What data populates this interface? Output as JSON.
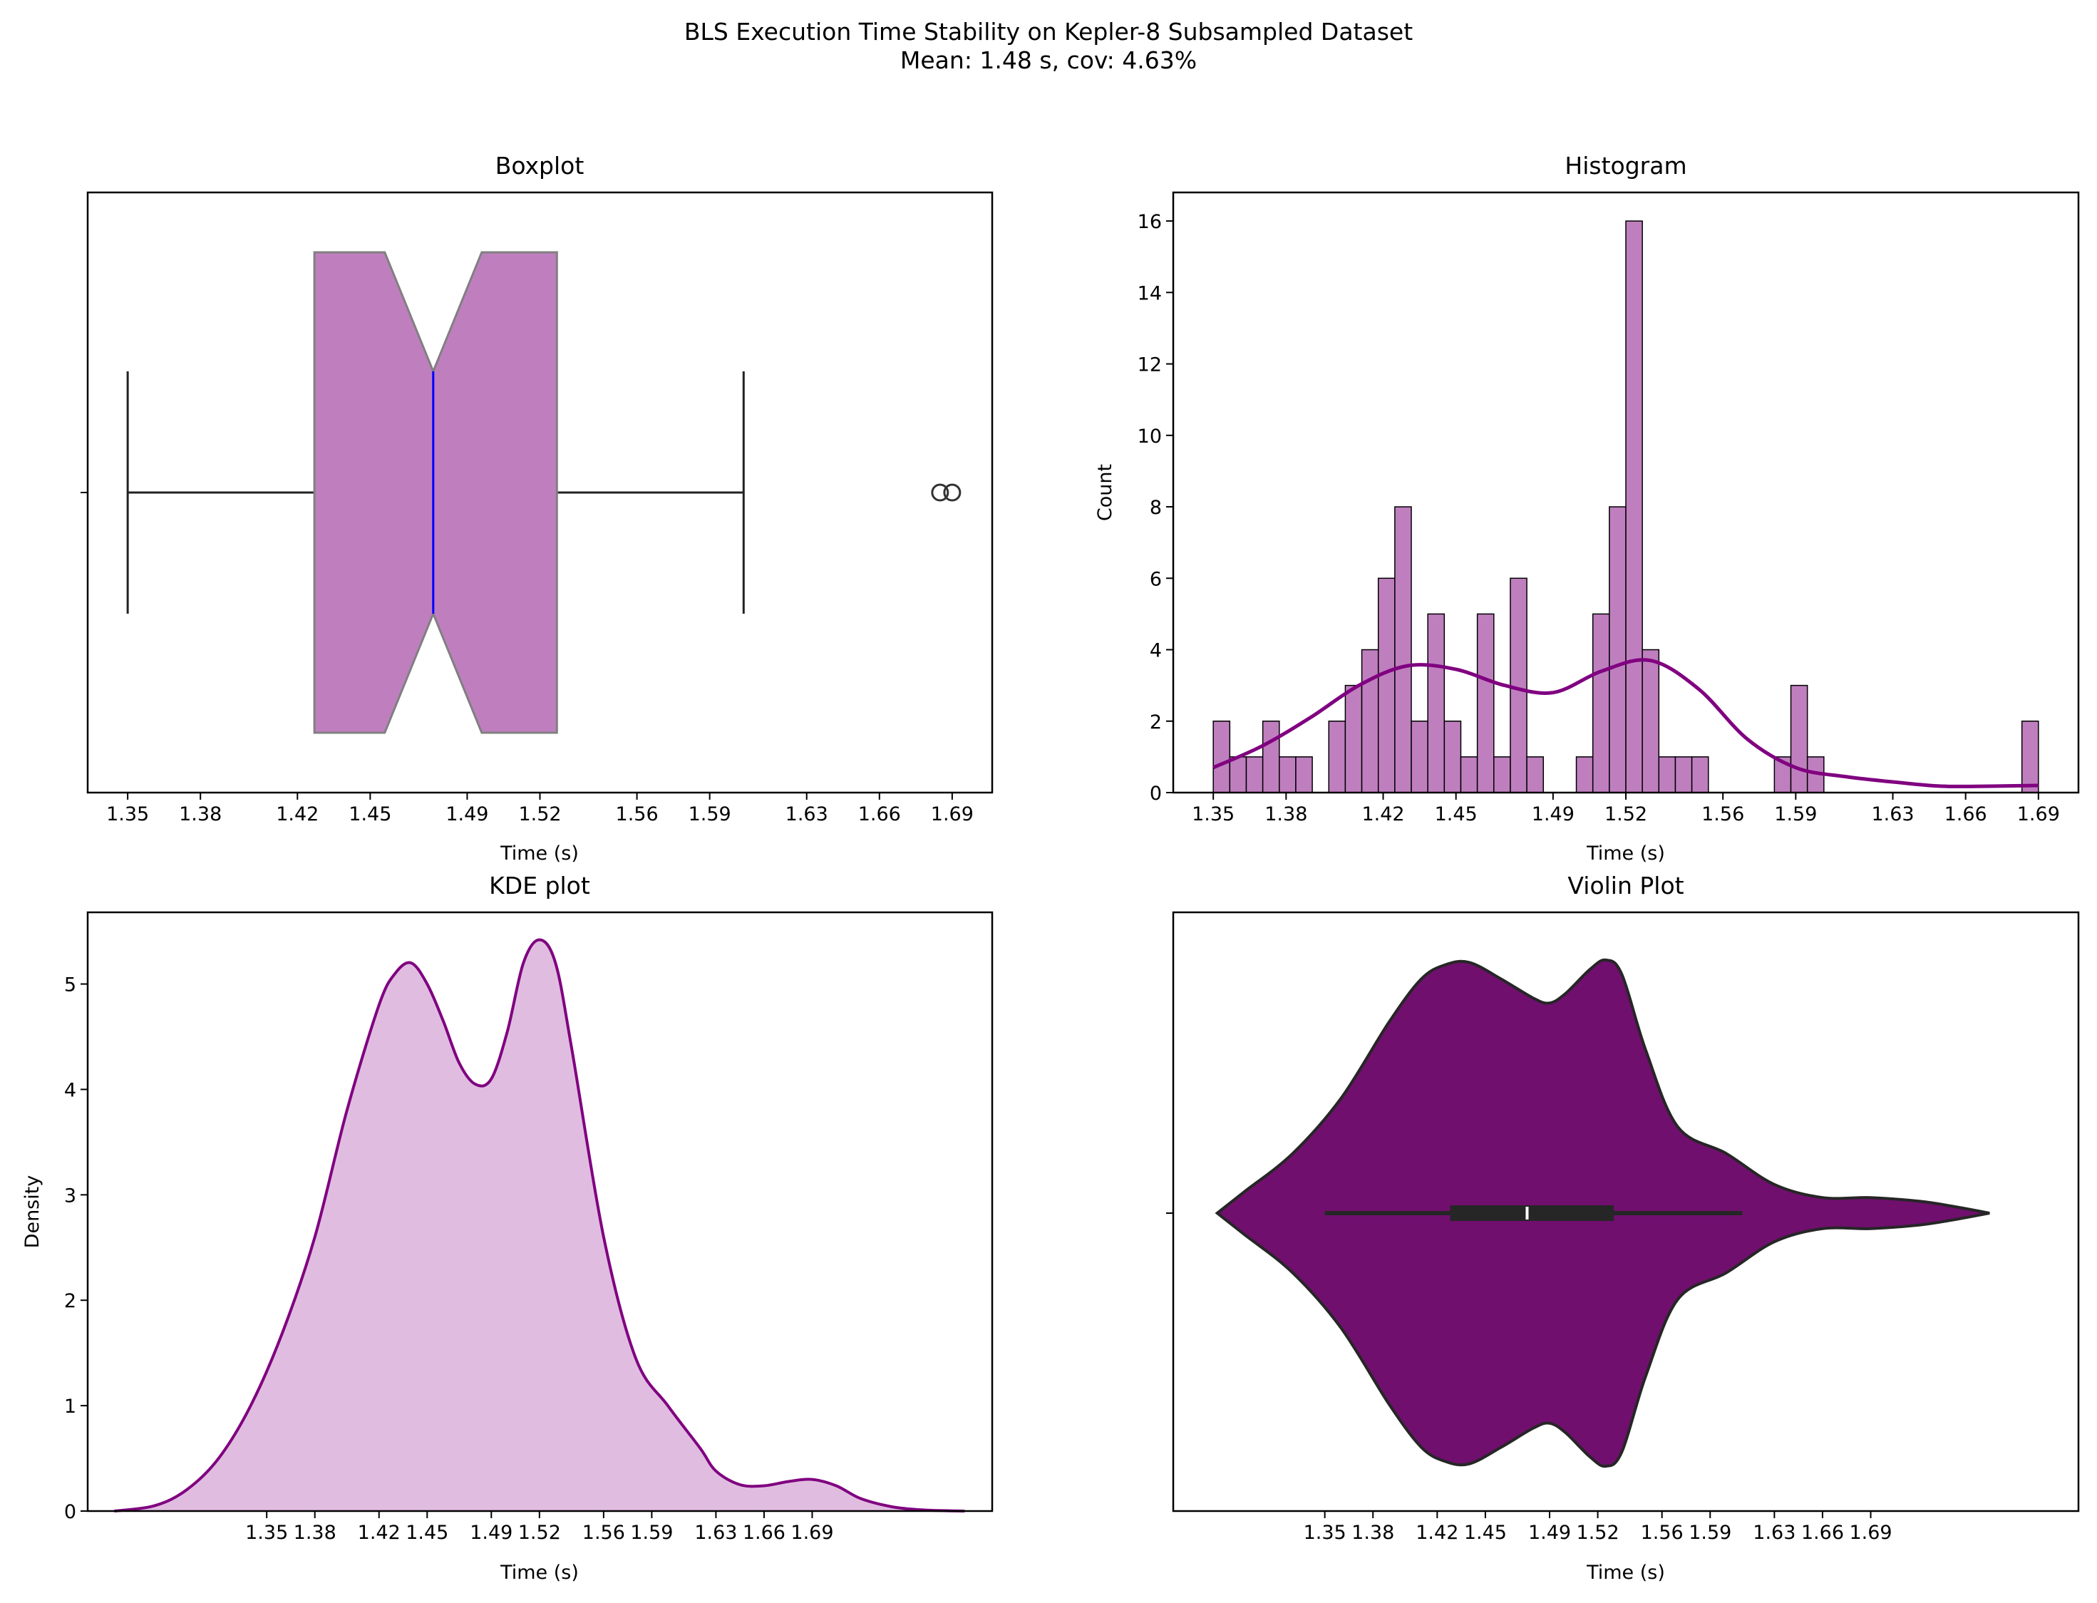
{
  "figure": {
    "title_line1": "BLS Execution Time Stability on Kepler-8 Subsampled Dataset",
    "title_line2": "Mean: 1.48 s, cov: 4.63%"
  },
  "colors": {
    "box_fill": "#bf7fbf",
    "box_edge": "#808080",
    "median_line": "#0000ff",
    "hist_fill": "#bf7fbf",
    "kde_line": "#800080",
    "kde_fill": "#e0bde0",
    "violin_fill": "#700f6e",
    "violin_edge": "#262626"
  },
  "chart_data": [
    {
      "type": "boxplot",
      "title": "Boxplot",
      "xlabel": "Time (s)",
      "ylabel": "",
      "notched": true,
      "xticks": [
        "1.35",
        "1.38",
        "1.42",
        "1.45",
        "1.49",
        "1.52",
        "1.56",
        "1.59",
        "1.63",
        "1.66",
        "1.69"
      ],
      "xlim": [
        1.3335,
        1.7065
      ],
      "whisker_low": 1.35,
      "q1": 1.427,
      "median": 1.476,
      "q3": 1.527,
      "whisker_high": 1.604,
      "notch_low": 1.456,
      "notch_high": 1.496,
      "outliers": [
        1.685,
        1.69
      ]
    },
    {
      "type": "bar",
      "title": "Histogram",
      "xlabel": "Time (s)",
      "ylabel": "Count",
      "xticks": [
        "1.35",
        "1.38",
        "1.42",
        "1.45",
        "1.49",
        "1.52",
        "1.56",
        "1.59",
        "1.63",
        "1.66",
        "1.69"
      ],
      "yticks": [
        "0",
        "2",
        "4",
        "6",
        "8",
        "10",
        "12",
        "14",
        "16"
      ],
      "xlim": [
        1.3335,
        1.7065
      ],
      "ylim": [
        0,
        16.8
      ],
      "bin_start": 1.35,
      "bin_width": 0.0068,
      "counts": [
        2,
        1,
        1,
        2,
        1,
        1,
        0,
        2,
        3,
        4,
        6,
        8,
        2,
        5,
        2,
        1,
        5,
        1,
        6,
        1,
        0,
        0,
        1,
        5,
        8,
        16,
        4,
        1,
        1,
        1,
        0,
        0,
        0,
        0,
        1,
        3,
        1,
        0,
        0,
        0,
        0,
        0,
        0,
        0,
        0,
        0,
        0,
        0,
        0,
        2
      ],
      "kde_x": [
        1.35,
        1.37,
        1.39,
        1.41,
        1.43,
        1.45,
        1.47,
        1.49,
        1.51,
        1.53,
        1.55,
        1.57,
        1.59,
        1.61,
        1.63,
        1.65,
        1.67,
        1.69
      ],
      "kde_y": [
        0.7,
        1.3,
        2.1,
        3.0,
        3.55,
        3.45,
        3.0,
        2.8,
        3.4,
        3.7,
        2.9,
        1.5,
        0.7,
        0.45,
        0.3,
        0.18,
        0.18,
        0.2
      ]
    },
    {
      "type": "area",
      "title": "KDE plot",
      "xlabel": "Time (s)",
      "ylabel": "Density",
      "xticks": [
        "1.35",
        "1.38",
        "1.42",
        "1.45",
        "1.49",
        "1.52",
        "1.56",
        "1.59",
        "1.63",
        "1.66",
        "1.69"
      ],
      "yticks": [
        "0",
        "1",
        "2",
        "3",
        "4",
        "5"
      ],
      "xlim": [
        1.2384,
        1.8022
      ],
      "ylim": [
        0,
        5.68
      ],
      "x": [
        1.255,
        1.28,
        1.3,
        1.32,
        1.34,
        1.36,
        1.38,
        1.4,
        1.42,
        1.43,
        1.44,
        1.45,
        1.46,
        1.47,
        1.48,
        1.49,
        1.5,
        1.51,
        1.52,
        1.53,
        1.54,
        1.56,
        1.58,
        1.6,
        1.62,
        1.63,
        1.645,
        1.66,
        1.675,
        1.69,
        1.705,
        1.72,
        1.74,
        1.76,
        1.785
      ],
      "y": [
        0.0,
        0.05,
        0.2,
        0.5,
        1.0,
        1.7,
        2.6,
        3.8,
        4.8,
        5.1,
        5.2,
        5.0,
        4.65,
        4.25,
        4.05,
        4.1,
        4.55,
        5.2,
        5.42,
        5.2,
        4.4,
        2.6,
        1.45,
        1.0,
        0.6,
        0.38,
        0.25,
        0.24,
        0.28,
        0.3,
        0.24,
        0.12,
        0.04,
        0.01,
        0.0
      ]
    },
    {
      "type": "violin",
      "title": "Violin Plot",
      "xlabel": "Time (s)",
      "ylabel": "",
      "xticks": [
        "1.35",
        "1.38",
        "1.42",
        "1.45",
        "1.49",
        "1.52",
        "1.56",
        "1.59",
        "1.63",
        "1.66",
        "1.69"
      ],
      "xlim": [
        1.2556,
        1.8194
      ],
      "x": [
        1.283,
        1.3,
        1.33,
        1.36,
        1.39,
        1.41,
        1.425,
        1.44,
        1.46,
        1.48,
        1.49,
        1.5,
        1.515,
        1.525,
        1.535,
        1.55,
        1.57,
        1.6,
        1.63,
        1.66,
        1.69,
        1.72,
        1.74,
        1.764
      ],
      "half_width": [
        0.0,
        0.09,
        0.25,
        0.48,
        0.8,
        0.98,
        1.04,
        1.05,
        0.98,
        0.9,
        0.88,
        0.92,
        1.02,
        1.06,
        1.0,
        0.68,
        0.36,
        0.25,
        0.12,
        0.065,
        0.065,
        0.05,
        0.03,
        0.0
      ],
      "whisker_low": 1.35,
      "q1": 1.428,
      "median": 1.476,
      "q3": 1.53,
      "whisker_high": 1.61
    }
  ]
}
